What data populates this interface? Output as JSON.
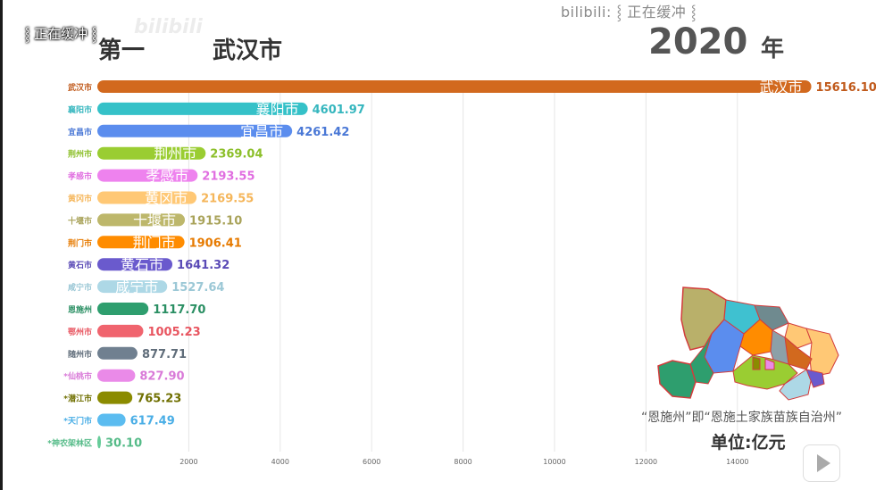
{
  "overlay": {
    "top_text": "bilibili: ⸾ 正在缓冲 ⸾",
    "left_text": "⸾ 正在缓冲 ⸾"
  },
  "header": {
    "rank_label": "第一",
    "current_name": "武汉市",
    "year": "2020",
    "year_unit": "年"
  },
  "note": "“恩施州”即“恩施土家族苗族自治州”",
  "unit_label": "单位:亿元",
  "icons": {
    "play": "play-icon",
    "map": "hubei-map-icon"
  },
  "chart_data": {
    "type": "bar",
    "orientation": "horizontal",
    "title": "",
    "xlabel": "",
    "ylabel": "",
    "categories": [
      "武汉市",
      "襄阳市",
      "宜昌市",
      "荆州市",
      "孝感市",
      "黄冈市",
      "十堰市",
      "荆门市",
      "黄石市",
      "咸宁市",
      "恩施州",
      "鄂州市",
      "随州市",
      "*仙桃市",
      "*潜江市",
      "*天门市",
      "*神农架林区"
    ],
    "values": [
      15616.1,
      4601.97,
      4261.42,
      2369.04,
      2193.55,
      2169.55,
      1915.1,
      1906.41,
      1641.32,
      1527.64,
      1117.7,
      1005.23,
      877.71,
      827.9,
      765.23,
      617.49,
      30.1
    ],
    "value_labels": [
      "15616.10",
      "4601.97",
      "4261.42",
      "2369.04",
      "2193.55",
      "2169.55",
      "1915.10",
      "1906.41",
      "1641.32",
      "1527.64",
      "1117.70",
      "1005.23",
      "877.71",
      "827.90",
      "765.23",
      "617.49",
      "30.10"
    ],
    "bar_labels": [
      "武汉市",
      "襄阳市",
      "宜昌市",
      "荆州市",
      "孝感市",
      "黄冈市",
      "十堰市",
      "荆门市",
      "黄石市",
      "咸宁市",
      "",
      "",
      "",
      "",
      "",
      "",
      ""
    ],
    "colors": [
      "#d2691e",
      "#35c1c8",
      "#5b8dee",
      "#9acd32",
      "#ee82ee",
      "#ffc875",
      "#bdb76b",
      "#ff8c00",
      "#6a5acd",
      "#add8e6",
      "#2e9e6e",
      "#f0646e",
      "#708090",
      "#ea8ae8",
      "#8b8b00",
      "#5bbcf0",
      "#66cc99"
    ],
    "label_colors": [
      "#c0591a",
      "#35b6be",
      "#4a78d6",
      "#8cbf2a",
      "#e06ee0",
      "#f5b65a",
      "#a9a35a",
      "#e67a00",
      "#5a4ab6",
      "#9cc8d6",
      "#2a8f63",
      "#e85560",
      "#606d7a",
      "#d97ad8",
      "#6f6f00",
      "#4aaee6",
      "#55bb88"
    ],
    "x_ticks": [
      2000,
      4000,
      6000,
      8000,
      10000,
      12000,
      14000
    ],
    "xlim": [
      0,
      15616.1
    ],
    "grid": true
  }
}
